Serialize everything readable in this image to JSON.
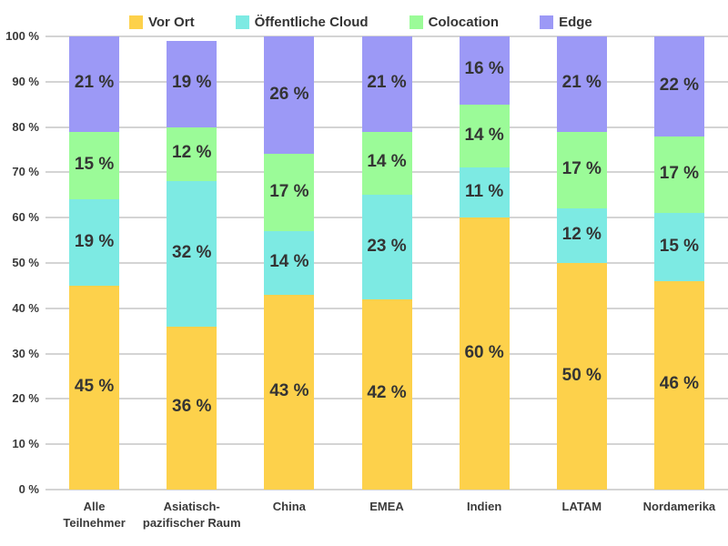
{
  "chart_data": {
    "type": "bar",
    "stacked": true,
    "unit": "%",
    "title": "",
    "xlabel": "",
    "ylabel": "",
    "ylim": [
      0,
      100
    ],
    "grid": true,
    "legend_position": "top",
    "value_label_format": "{v} %",
    "categories": [
      {
        "lines": [
          "Alle",
          "Teilnehmer"
        ]
      },
      {
        "lines": [
          "Asiatisch-",
          "pazifischer Raum"
        ]
      },
      {
        "lines": [
          "China"
        ]
      },
      {
        "lines": [
          "EMEA"
        ]
      },
      {
        "lines": [
          "Indien"
        ]
      },
      {
        "lines": [
          "LATAM"
        ]
      },
      {
        "lines": [
          "Nordamerika"
        ]
      }
    ],
    "series": [
      {
        "name": "Vor Ort",
        "color": "#FDD14B",
        "values": [
          45,
          36,
          43,
          42,
          60,
          50,
          46
        ]
      },
      {
        "name": "Öffentliche Cloud",
        "color": "#7DEAE3",
        "values": [
          19,
          32,
          14,
          23,
          11,
          12,
          15
        ]
      },
      {
        "name": "Colocation",
        "color": "#9BFB98",
        "values": [
          15,
          12,
          17,
          14,
          14,
          17,
          17
        ]
      },
      {
        "name": "Edge",
        "color": "#9C99F6",
        "values": [
          21,
          19,
          26,
          21,
          16,
          21,
          22
        ]
      }
    ],
    "y_ticks": [
      {
        "value": 0,
        "label": "0 %"
      },
      {
        "value": 10,
        "label": "10 %"
      },
      {
        "value": 20,
        "label": "20 %"
      },
      {
        "value": 30,
        "label": "30 %"
      },
      {
        "value": 40,
        "label": "40 %"
      },
      {
        "value": 50,
        "label": "50 %"
      },
      {
        "value": 60,
        "label": "60 %"
      },
      {
        "value": 70,
        "label": "70 %"
      },
      {
        "value": 80,
        "label": "80 %"
      },
      {
        "value": 90,
        "label": "90 %"
      },
      {
        "value": 100,
        "label": "100 %"
      }
    ]
  },
  "colors": {
    "background": "#FFFFFF",
    "text": "#343434",
    "axis_text": "#3A3A3A",
    "gridline": "#D4D4D4"
  }
}
